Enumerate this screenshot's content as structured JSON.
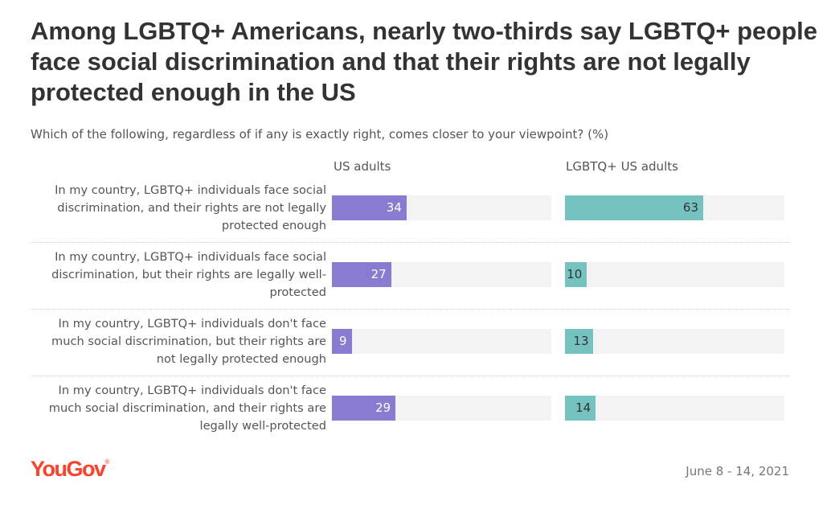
{
  "title": "Among LGBTQ+ Americans, nearly two-thirds say LGBTQ+ people face social discrimination and that their rights are not legally protected enough in the US",
  "subtitle": "Which of the following, regardless of if any is exactly right, comes closer to your viewpoint? (%)",
  "brand": {
    "name": "YouGov",
    "mark": "®",
    "color": "#ff412c"
  },
  "date": "June 8 - 14, 2021",
  "colors": {
    "us_adults": "#8a7bd2",
    "lgbtq_us_adults": "#74c3c1",
    "track": "#f3f3f3"
  },
  "chart_data": {
    "type": "bar",
    "orientation": "horizontal",
    "title": "Among LGBTQ+ Americans, nearly two-thirds say LGBTQ+ people face social discrimination and that their rights are not legally protected enough in the US",
    "subtitle": "Which of the following, regardless of if any is exactly right, comes closer to your viewpoint? (%)",
    "xlim": [
      0,
      100
    ],
    "categories": [
      "In my country, LGBTQ+ individuals face social discrimination, and their rights are not legally protected enough",
      "In my country, LGBTQ+ individuals face social discrimination, but their rights are legally well-protected",
      "In my country, LGBTQ+ individuals don't face much social discrimination, but their rights are not legally protected enough",
      "In my country, LGBTQ+ individuals don't face much social discrimination, and their rights are legally well-protected"
    ],
    "series": [
      {
        "name": "US adults",
        "values": [
          34,
          27,
          9,
          29
        ]
      },
      {
        "name": "LGBTQ+ US adults",
        "values": [
          63,
          10,
          13,
          14
        ]
      }
    ],
    "grid": false,
    "legend": "panel headers (top)"
  }
}
